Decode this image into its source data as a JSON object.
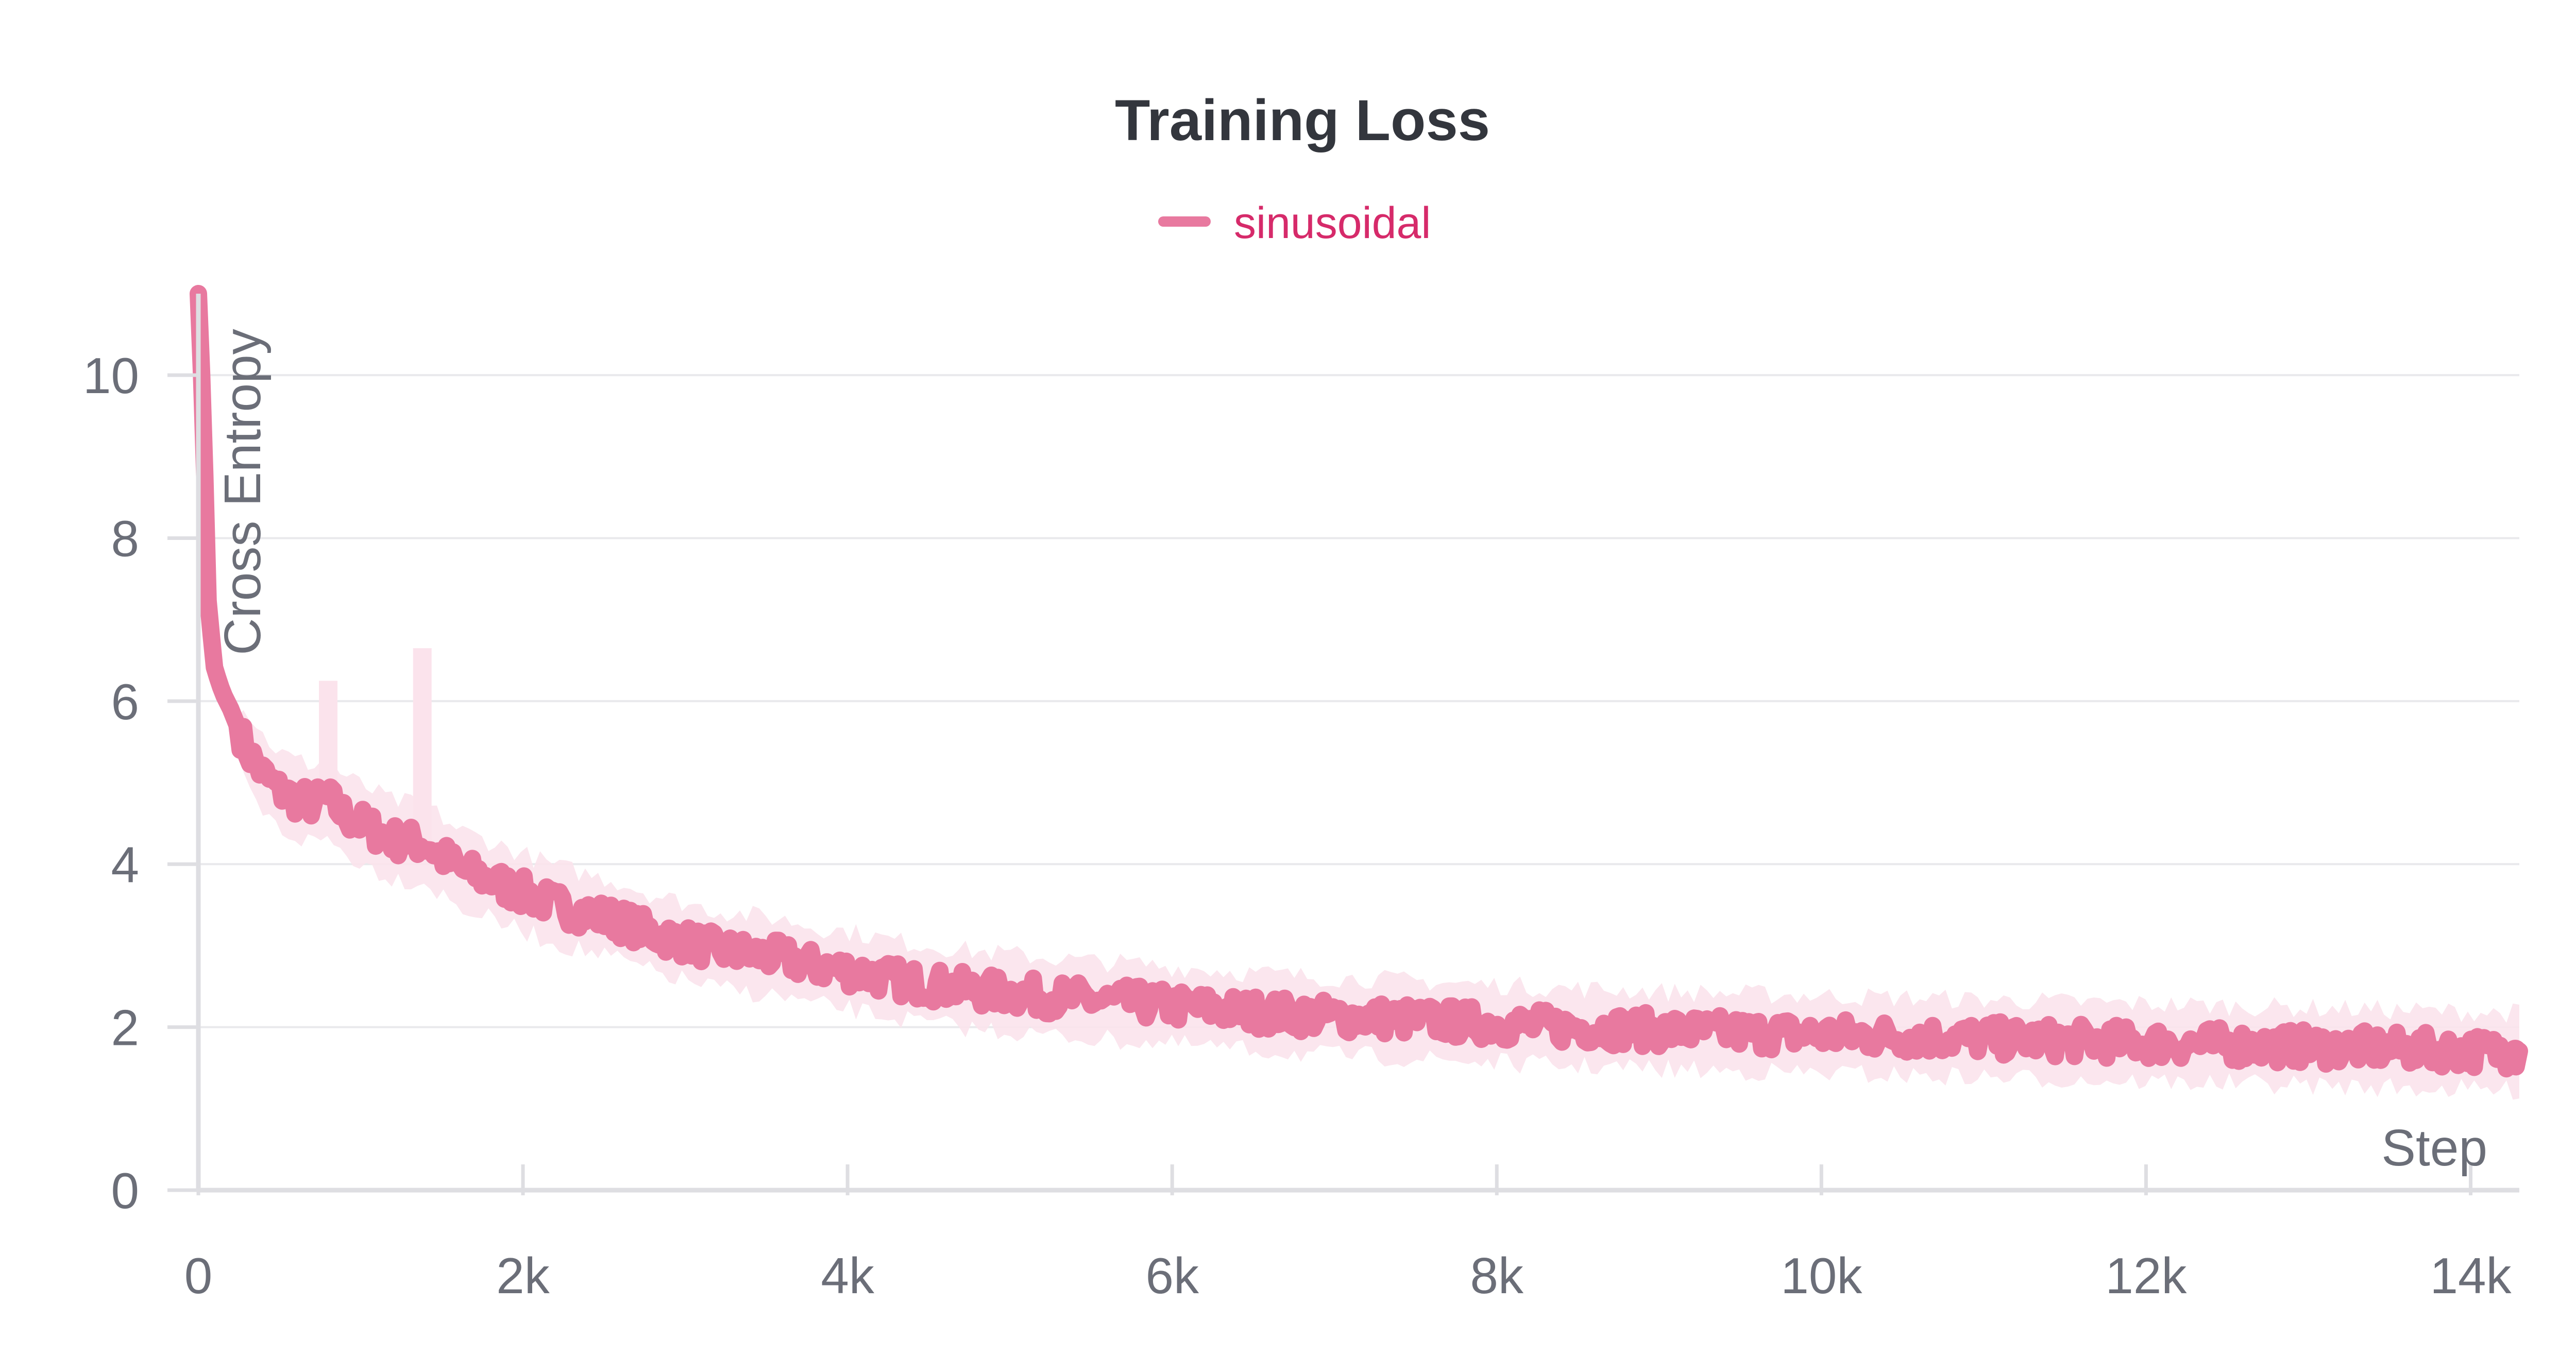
{
  "chart_data": {
    "type": "line",
    "title": "Training Loss",
    "xlabel": "Step",
    "ylabel": "Cross Entropy",
    "xlim": [
      0,
      14300
    ],
    "ylim": [
      0,
      11
    ],
    "x_ticks": [
      0,
      2000,
      4000,
      6000,
      8000,
      10000,
      12000,
      14000
    ],
    "x_tick_labels": [
      "0",
      "2k",
      "4k",
      "6k",
      "8k",
      "10k",
      "12k",
      "14k"
    ],
    "y_ticks": [
      0,
      2,
      4,
      6,
      8,
      10
    ],
    "y_tick_labels": [
      "0",
      "2",
      "4",
      "6",
      "8",
      "10"
    ],
    "grid": true,
    "legend": "top-center",
    "series": [
      {
        "name": "sinusoidal",
        "color": "#e8799f",
        "x": [
          0,
          30,
          60,
          100,
          150,
          200,
          300,
          400,
          500,
          600,
          700,
          800,
          900,
          1000,
          1200,
          1400,
          1600,
          1800,
          2000,
          2200,
          2400,
          2600,
          2800,
          3000,
          3200,
          3400,
          3600,
          3800,
          4000,
          4200,
          4400,
          4600,
          4800,
          5000,
          5200,
          5400,
          5600,
          5800,
          6000,
          6200,
          6400,
          6600,
          6800,
          7000,
          7200,
          7400,
          7600,
          7800,
          8000,
          8200,
          8400,
          8600,
          8800,
          9000,
          9200,
          9400,
          9600,
          9800,
          10000,
          10200,
          10400,
          10600,
          10800,
          11000,
          11200,
          11400,
          11600,
          11800,
          12000,
          12200,
          12400,
          12600,
          12800,
          13000,
          13200,
          13400,
          13600,
          13800,
          14000,
          14200,
          14300
        ],
        "y": [
          11.0,
          9.5,
          7.2,
          6.4,
          6.1,
          5.9,
          5.4,
          5.1,
          4.9,
          4.8,
          4.75,
          4.8,
          4.6,
          4.5,
          4.3,
          4.25,
          3.95,
          3.8,
          3.65,
          3.5,
          3.4,
          3.3,
          3.15,
          3.05,
          2.95,
          2.9,
          2.85,
          2.75,
          2.7,
          2.62,
          2.55,
          2.5,
          2.45,
          2.42,
          2.38,
          2.35,
          2.32,
          2.3,
          2.26,
          2.24,
          2.2,
          2.18,
          2.15,
          2.13,
          2.12,
          2.1,
          2.08,
          2.06,
          2.04,
          2.02,
          2.0,
          1.99,
          1.98,
          1.96,
          1.95,
          1.94,
          1.93,
          1.92,
          1.91,
          1.9,
          1.89,
          1.88,
          1.87,
          1.86,
          1.85,
          1.84,
          1.83,
          1.82,
          1.81,
          1.8,
          1.79,
          1.78,
          1.77,
          1.76,
          1.75,
          1.74,
          1.73,
          1.72,
          1.71,
          1.7,
          1.7
        ]
      }
    ]
  }
}
